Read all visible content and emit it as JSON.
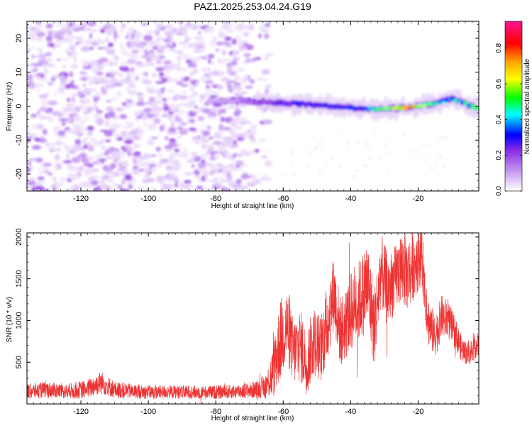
{
  "figure_title": "PAZ1.2025.253.04.24.G19",
  "chart_data": [
    {
      "type": "heatmap",
      "title": "",
      "xlabel": "Height of straight line (km)",
      "ylabel": "Frequency (Hz)",
      "xlim": [
        -136,
        -2
      ],
      "ylim": [
        -25,
        25
      ],
      "x_ticks": [
        -120,
        -100,
        -80,
        -60,
        -40,
        -20
      ],
      "x_tick_labels": [
        "-120",
        "-100",
        "-80",
        "-60",
        "-40",
        "-20"
      ],
      "y_ticks": [
        -20,
        -10,
        0,
        10,
        20
      ],
      "y_tick_labels": [
        "-20",
        "-10",
        "0",
        "10",
        "20"
      ],
      "noise_region_x": [
        -136,
        -64
      ],
      "signal_region_x": [
        -82,
        -2
      ],
      "signal_track": [
        {
          "x": -82,
          "y": 1.5,
          "amp": 0.15
        },
        {
          "x": -74,
          "y": 1.5,
          "amp": 0.15
        },
        {
          "x": -68,
          "y": 1.3,
          "amp": 0.25
        },
        {
          "x": -62,
          "y": 1.0,
          "amp": 0.3
        },
        {
          "x": -56,
          "y": 0.8,
          "amp": 0.35
        },
        {
          "x": -50,
          "y": 0.3,
          "amp": 0.35
        },
        {
          "x": -44,
          "y": -0.2,
          "amp": 0.38
        },
        {
          "x": -38,
          "y": -0.6,
          "amp": 0.38
        },
        {
          "x": -32,
          "y": -0.8,
          "amp": 0.5
        },
        {
          "x": -26,
          "y": -0.6,
          "amp": 0.6
        },
        {
          "x": -22,
          "y": -0.3,
          "amp": 0.75
        },
        {
          "x": -18,
          "y": 0.3,
          "amp": 0.55
        },
        {
          "x": -14,
          "y": 1.0,
          "amp": 0.45
        },
        {
          "x": -10,
          "y": 2.3,
          "amp": 0.45
        },
        {
          "x": -6,
          "y": 0.8,
          "amp": 0.5
        },
        {
          "x": -3,
          "y": -0.5,
          "amp": 0.55
        }
      ],
      "colorbar": {
        "label": "Normalized spectral amplitude",
        "range": [
          0,
          0.95
        ],
        "ticks": [
          0.0,
          0.2,
          0.4,
          0.6,
          0.8
        ],
        "tick_labels": [
          "0.0",
          "0.2",
          "0.4",
          "0.6",
          "0.8"
        ],
        "colors": [
          "#ffffff",
          "#e6d2f8",
          "#b47cf0",
          "#8a2be2",
          "#0000ff",
          "#00ffff",
          "#00ff00",
          "#ffff00",
          "#ffa500",
          "#ff0000",
          "#ff1493"
        ]
      }
    },
    {
      "type": "line",
      "title": "",
      "xlabel": "Height of straight line (km)",
      "ylabel": "SNR (10 * v/v)",
      "xlim": [
        -136,
        -2
      ],
      "ylim": [
        0,
        2050
      ],
      "x_ticks": [
        -120,
        -100,
        -80,
        -60,
        -40,
        -20
      ],
      "x_tick_labels": [
        "-120",
        "-100",
        "-80",
        "-60",
        "-40",
        "-20"
      ],
      "y_ticks": [
        500,
        1000,
        1500,
        2000
      ],
      "y_tick_labels": [
        "500",
        "1000",
        "1500",
        "2000"
      ],
      "line_color": "#ee3333",
      "series": [
        {
          "name": "SNR",
          "x": [
            -136,
            -130,
            -124,
            -118,
            -114,
            -110,
            -104,
            -98,
            -92,
            -86,
            -80,
            -74,
            -68,
            -65,
            -63,
            -61,
            -59,
            -57,
            -55,
            -53,
            -51,
            -49,
            -47,
            -45,
            -43,
            -41,
            -39,
            -37,
            -35,
            -33,
            -31,
            -29,
            -27,
            -25,
            -23,
            -21,
            -19,
            -17,
            -15,
            -13,
            -11,
            -9,
            -7,
            -5,
            -3,
            -2
          ],
          "values": [
            150,
            170,
            150,
            180,
            260,
            170,
            150,
            140,
            145,
            140,
            140,
            150,
            170,
            220,
            380,
            750,
            950,
            620,
            700,
            500,
            760,
            650,
            950,
            1350,
            850,
            1000,
            1180,
            1250,
            1450,
            900,
            1600,
            1350,
            1480,
            1650,
            1550,
            1700,
            1800,
            1000,
            800,
            1050,
            1000,
            850,
            650,
            600,
            700,
            700
          ],
          "noise_amplitude": [
            90,
            95,
            90,
            110,
            140,
            100,
            85,
            80,
            80,
            80,
            80,
            85,
            100,
            160,
            320,
            500,
            450,
            400,
            450,
            400,
            420,
            420,
            480,
            450,
            420,
            450,
            500,
            500,
            550,
            500,
            450,
            450,
            400,
            450,
            450,
            420,
            380,
            300,
            250,
            260,
            230,
            200,
            150,
            140,
            150,
            150
          ]
        }
      ]
    }
  ]
}
